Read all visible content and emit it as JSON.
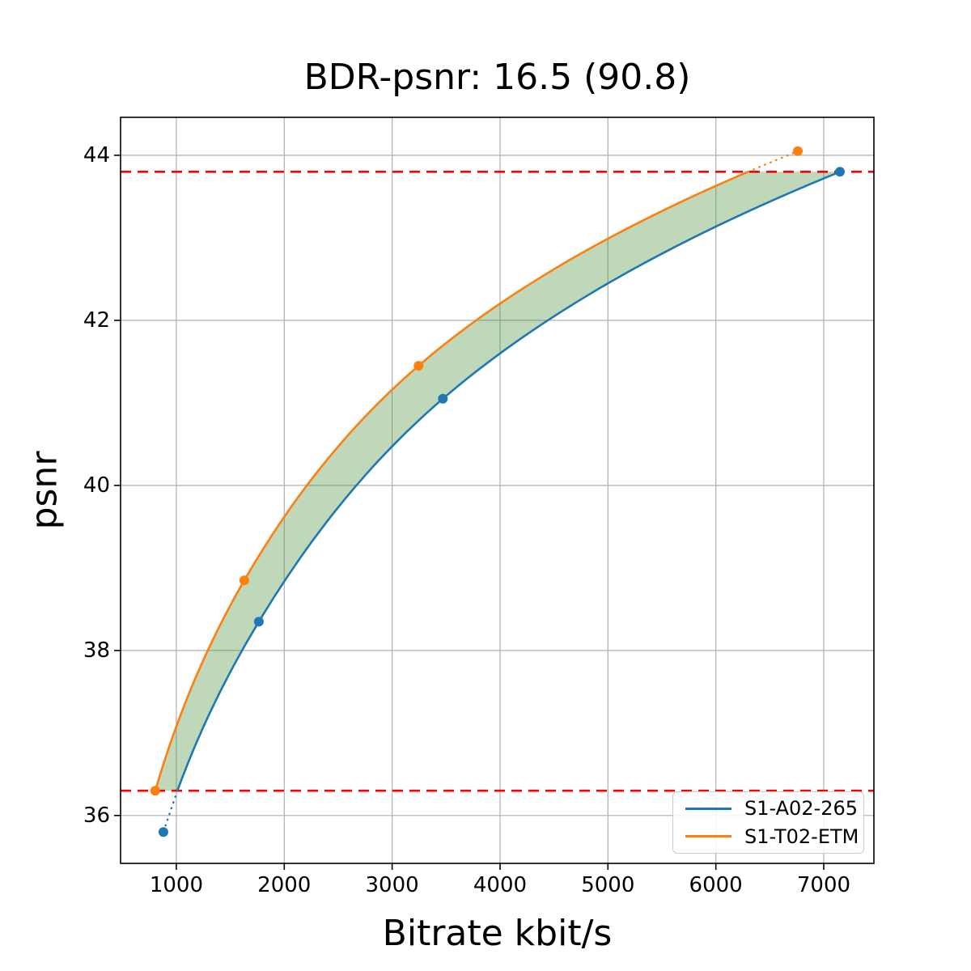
{
  "chart_data": {
    "type": "line",
    "title": "BDR-psnr: 16.5 (90.8)",
    "xlabel": "Bitrate kbit/s",
    "ylabel": "psnr",
    "xlim": [
      483,
      7465
    ],
    "ylim": [
      35.42,
      44.46
    ],
    "xticks": [
      1000,
      2000,
      3000,
      4000,
      5000,
      6000,
      7000
    ],
    "xtick_labels": [
      "1000",
      "2000",
      "3000",
      "4000",
      "5000",
      "6000",
      "7000"
    ],
    "yticks": [
      36,
      38,
      40,
      42,
      44
    ],
    "ytick_labels": [
      "36",
      "38",
      "40",
      "42",
      "44"
    ],
    "grid": true,
    "grid_color": "#b0b0b0",
    "legend_position": "lower right",
    "interpolation": "pchip of log10(bitrate) vs psnr",
    "series": [
      {
        "name": "S1-A02-265",
        "color": "#1f77b4",
        "points": [
          [
            880,
            35.8
          ],
          [
            1765,
            38.35
          ],
          [
            3470,
            41.05
          ],
          [
            7150,
            43.8
          ]
        ]
      },
      {
        "name": "S1-T02-ETM",
        "color": "#ff7f0e",
        "points": [
          [
            805,
            36.3
          ],
          [
            1630,
            38.85
          ],
          [
            3245,
            41.45
          ],
          [
            6760,
            44.05
          ]
        ]
      }
    ],
    "overlap_region": {
      "psnr_low": 36.3,
      "psnr_high": 43.8,
      "boundary_line_color": "#ff0000",
      "boundary_line_style": "dashed",
      "fill_color": "rgba(69, 143, 55, 0.35)"
    }
  },
  "legend": {
    "items": [
      {
        "label": "S1-A02-265",
        "color": "#1f77b4"
      },
      {
        "label": "S1-T02-ETM",
        "color": "#ff7f0e"
      }
    ]
  }
}
